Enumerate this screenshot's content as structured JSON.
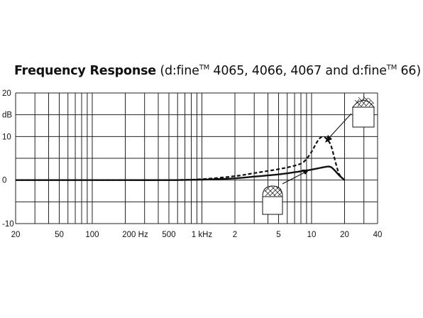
{
  "chart_data": {
    "type": "line",
    "title": {
      "bold": "Frequency Response",
      "p1": "(d:fine",
      "tm1": "TM",
      "p2": " 4065, 4066, 4067 and d:fine",
      "tm2": "TM",
      "p3": " 66)"
    },
    "x_scale": "log",
    "xlim": [
      20,
      40000
    ],
    "ylim": [
      -10,
      20
    ],
    "grid": true,
    "x_ticks": [
      {
        "value": 20,
        "label": "20"
      },
      {
        "value": 50,
        "label": "50"
      },
      {
        "value": 100,
        "label": "100"
      },
      {
        "value": 200,
        "label": "200 Hz"
      },
      {
        "value": 500,
        "label": "500"
      },
      {
        "value": 1000,
        "label": "1 kHz"
      },
      {
        "value": 2000,
        "label": "2"
      },
      {
        "value": 5000,
        "label": "5"
      },
      {
        "value": 10000,
        "label": "10"
      },
      {
        "value": 20000,
        "label": "20"
      },
      {
        "value": 40000,
        "label": "40"
      }
    ],
    "y_ticks": [
      {
        "value": 20,
        "label": "20"
      },
      {
        "value": 15,
        "label": "dB"
      },
      {
        "value": 10,
        "label": "10"
      },
      {
        "value": 0,
        "label": "0"
      },
      {
        "value": -10,
        "label": "-10"
      }
    ],
    "series": [
      {
        "style": "solid",
        "x": [
          20,
          50,
          100,
          200,
          500,
          1000,
          2000,
          3000,
          5000,
          7000,
          10000,
          12000,
          14000,
          15000,
          16000,
          18000,
          20000
        ],
        "y": [
          0,
          0,
          0,
          0,
          0,
          0.1,
          0.4,
          0.8,
          1.3,
          1.8,
          2.4,
          2.8,
          3.1,
          3.0,
          2.4,
          1.0,
          0
        ]
      },
      {
        "style": "dashed",
        "x": [
          20,
          50,
          100,
          200,
          500,
          1000,
          2000,
          3000,
          5000,
          7000,
          8500,
          10000,
          11000,
          12000,
          13000,
          14000,
          15000,
          16000,
          17000,
          18000,
          20000
        ],
        "y": [
          0,
          0,
          0,
          0,
          0,
          0.2,
          0.9,
          1.6,
          2.5,
          3.3,
          4.2,
          6.5,
          8.4,
          9.7,
          9.9,
          9.2,
          8.0,
          5.5,
          3.0,
          1.2,
          0
        ]
      }
    ]
  }
}
